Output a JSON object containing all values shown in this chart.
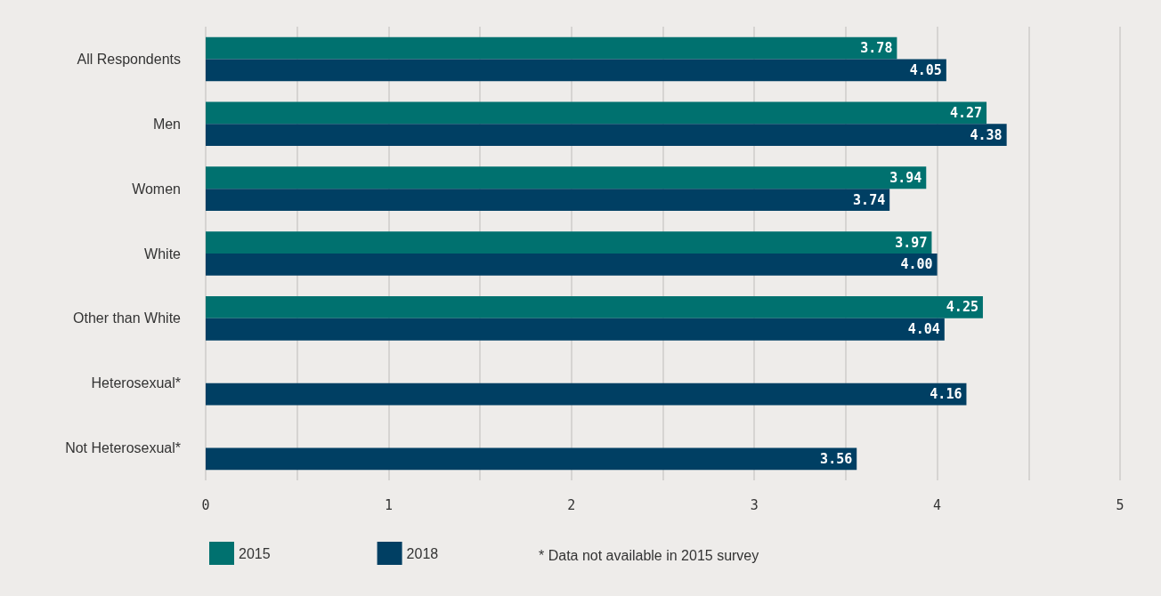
{
  "chart_data": {
    "type": "bar",
    "orientation": "horizontal",
    "categories": [
      "All Respondents",
      "Men",
      "Women",
      "White",
      "Other than White",
      "Heterosexual*",
      "Not Heterosexual*"
    ],
    "series": [
      {
        "name": "2015",
        "color": "#00716f",
        "values": [
          3.78,
          4.27,
          3.94,
          3.97,
          4.25,
          null,
          null
        ],
        "value_labels": [
          "3.78",
          "4.27",
          "3.94",
          "3.97",
          "4.25",
          null,
          null
        ]
      },
      {
        "name": "2018",
        "color": "#003f63",
        "values": [
          4.05,
          4.38,
          3.74,
          4.0,
          4.04,
          4.16,
          3.56
        ],
        "value_labels": [
          "4.05",
          "4.38",
          "3.74",
          "4.00",
          "4.04",
          "4.16",
          "3.56"
        ]
      }
    ],
    "xlim": [
      0,
      5
    ],
    "xticks": [
      0,
      {
        "value": 0.5,
        "label": null
      },
      1,
      {
        "value": 1.5,
        "label": null
      },
      2,
      {
        "value": 2.5,
        "label": null
      },
      3,
      {
        "value": 3.5,
        "label": null
      },
      4,
      {
        "value": 4.5,
        "label": null
      },
      5
    ],
    "grid": "x",
    "legend": "bottom left",
    "annotations": [
      "* Data not available in 2015 survey"
    ]
  }
}
